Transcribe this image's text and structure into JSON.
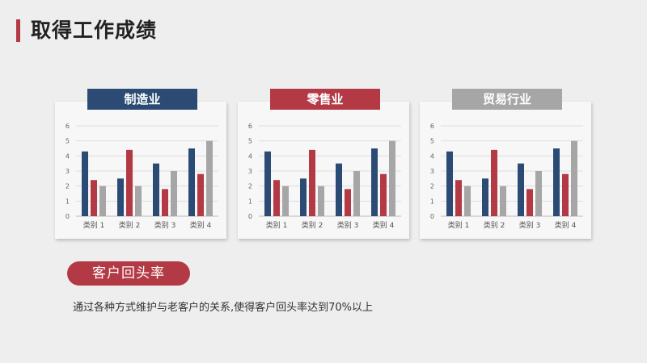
{
  "header": {
    "title": "取得工作成绩"
  },
  "charts": [
    {
      "heading": "制造业",
      "heading_color": "#2b4b74"
    },
    {
      "heading": "零售业",
      "heading_color": "#b33a45"
    },
    {
      "heading": "贸易行业",
      "heading_color": "#a6a6a6"
    }
  ],
  "series_colors": [
    "#2b4b74",
    "#b33a45",
    "#a6a6a6"
  ],
  "chart_data": [
    {
      "type": "bar",
      "categories": [
        "类别 1",
        "类别 2",
        "类别 3",
        "类别 4"
      ],
      "series": [
        {
          "values": [
            4.3,
            2.5,
            3.5,
            4.5
          ]
        },
        {
          "values": [
            2.4,
            4.4,
            1.8,
            2.8
          ]
        },
        {
          "values": [
            2.0,
            2.0,
            3.0,
            5.0
          ]
        }
      ],
      "yticks": [
        "0",
        "1",
        "2",
        "3",
        "4",
        "5",
        "6"
      ],
      "ylim": [
        0,
        6
      ],
      "grid": true
    },
    {
      "type": "bar",
      "categories": [
        "类别 1",
        "类别 2",
        "类别 3",
        "类别 4"
      ],
      "series": [
        {
          "values": [
            4.3,
            2.5,
            3.5,
            4.5
          ]
        },
        {
          "values": [
            2.4,
            4.4,
            1.8,
            2.8
          ]
        },
        {
          "values": [
            2.0,
            2.0,
            3.0,
            5.0
          ]
        }
      ],
      "yticks": [
        "0",
        "1",
        "2",
        "3",
        "4",
        "5",
        "6"
      ],
      "ylim": [
        0,
        6
      ],
      "grid": true
    },
    {
      "type": "bar",
      "categories": [
        "类别 1",
        "类别 2",
        "类别 3",
        "类别 4"
      ],
      "series": [
        {
          "values": [
            4.3,
            2.5,
            3.5,
            4.5
          ]
        },
        {
          "values": [
            2.4,
            4.4,
            1.8,
            2.8
          ]
        },
        {
          "values": [
            2.0,
            2.0,
            3.0,
            5.0
          ]
        }
      ],
      "yticks": [
        "0",
        "1",
        "2",
        "3",
        "4",
        "5",
        "6"
      ],
      "ylim": [
        0,
        6
      ],
      "grid": true
    }
  ],
  "section": {
    "label": "客户回头率",
    "text": "通过各种方式维护与老客户的关系,使得客户回头率达到70%以上"
  }
}
